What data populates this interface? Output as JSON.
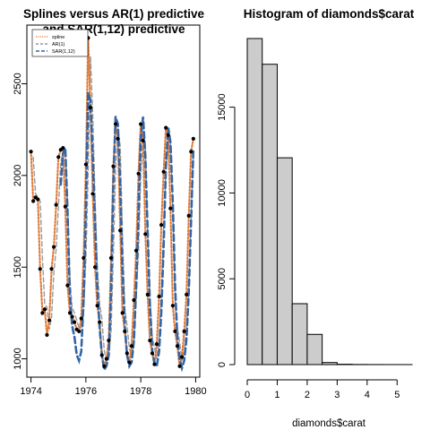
{
  "chart_data": [
    {
      "type": "line",
      "title": "Splines versus AR(1) predictive and SAR(1,12) predictive",
      "title_line1": "Splines versus AR(1) predictive",
      "title_line2": "and SAR(1,12) predictive",
      "xlabel": "",
      "ylabel": "",
      "xlim": [
        1973.85,
        1980.15
      ],
      "ylim": [
        900,
        2820
      ],
      "x_ticks": [
        1974,
        1976,
        1978,
        1980
      ],
      "x_tick_labels": [
        "1974",
        "1976",
        "1978",
        "1980"
      ],
      "y_ticks": [
        1000,
        1500,
        2000,
        2500
      ],
      "y_tick_labels": [
        "1000",
        "1500",
        "2000",
        "2500"
      ],
      "legend": {
        "position": "top-left",
        "entries": [
          "spline",
          "AR(1)",
          "SAR(1,12)"
        ]
      },
      "colors": {
        "points": "#000000",
        "spline": "#e07b39",
        "ar1": "#999999",
        "sar": "#3465a4"
      },
      "x": [
        1974.0,
        1974.083,
        1974.167,
        1974.25,
        1974.333,
        1974.417,
        1974.5,
        1974.583,
        1974.667,
        1974.75,
        1974.833,
        1974.917,
        1975.0,
        1975.083,
        1975.167,
        1975.25,
        1975.333,
        1975.417,
        1975.5,
        1975.583,
        1975.667,
        1975.75,
        1975.833,
        1975.917,
        1976.0,
        1976.083,
        1976.167,
        1976.25,
        1976.333,
        1976.417,
        1976.5,
        1976.583,
        1976.667,
        1976.75,
        1976.833,
        1976.917,
        1977.0,
        1977.083,
        1977.167,
        1977.25,
        1977.333,
        1977.417,
        1977.5,
        1977.583,
        1977.667,
        1977.75,
        1977.833,
        1977.917,
        1978.0,
        1978.083,
        1978.167,
        1978.25,
        1978.333,
        1978.417,
        1978.5,
        1978.583,
        1978.667,
        1978.75,
        1978.833,
        1978.917,
        1979.0,
        1979.083,
        1979.167,
        1979.25,
        1979.333,
        1979.417,
        1979.5,
        1979.583,
        1979.667,
        1979.75,
        1979.833,
        1979.917
      ],
      "series": [
        {
          "name": "spline",
          "style": "dotted",
          "values": [
            2130,
            1860,
            1880,
            1870,
            1490,
            1250,
            1270,
            1130,
            1210,
            1490,
            1610,
            1840,
            2100,
            2140,
            2150,
            1830,
            1400,
            1250,
            1230,
            1200,
            1160,
            1150,
            1220,
            1550,
            2060,
            2750,
            2370,
            1900,
            1500,
            1290,
            1200,
            1020,
            960,
            1000,
            1100,
            1550,
            2050,
            2280,
            2200,
            1700,
            1250,
            1150,
            1030,
            980,
            1070,
            1320,
            1590,
            2010,
            2280,
            2190,
            1680,
            1350,
            1100,
            1030,
            970,
            1080,
            1340,
            1730,
            2020,
            2260,
            2220,
            1820,
            1290,
            1150,
            1070,
            960,
            1010,
            1150,
            1350,
            1780,
            2130,
            2200
          ]
        },
        {
          "name": "AR(1)",
          "style": "dashed",
          "values": [
            null,
            2100,
            1900,
            1880,
            1860,
            1550,
            1300,
            1280,
            1160,
            1230,
            1470,
            1600,
            1830,
            2070,
            2130,
            2140,
            1850,
            1440,
            1280,
            1250,
            1210,
            1170,
            1170,
            1250,
            1540,
            2010,
            2650,
            2330,
            1880,
            1500,
            1300,
            1220,
            1050,
            980,
            1030,
            1150,
            1560,
            2030,
            2250,
            2160,
            1680,
            1280,
            1180,
            1060,
            1010,
            1090,
            1340,
            1580,
            2000,
            2240,
            2150,
            1670,
            1350,
            1120,
            1060,
            1000,
            1110,
            1370,
            1740,
            2020,
            2220,
            2170,
            1800,
            1300,
            1170,
            1090,
            990,
            1040,
            1180,
            1380,
            1790,
            2120
          ]
        },
        {
          "name": "SAR(1,12)",
          "style": "longdash",
          "values": [
            null,
            null,
            null,
            null,
            null,
            null,
            null,
            null,
            null,
            null,
            null,
            null,
            null,
            1950,
            2120,
            2150,
            1800,
            1350,
            1180,
            1120,
            1020,
            990,
            1040,
            1320,
            1830,
            2450,
            2410,
            2100,
            1750,
            1400,
            1170,
            1020,
            940,
            960,
            1020,
            1380,
            1950,
            2320,
            2280,
            1950,
            1500,
            1180,
            1020,
            960,
            980,
            1100,
            1390,
            1780,
            2200,
            2320,
            2100,
            1700,
            1300,
            1050,
            970,
            960,
            1040,
            1260,
            1620,
            2050,
            2260,
            2180,
            1850,
            1400,
            1110,
            1000,
            950,
            990,
            1110,
            1360,
            1750,
            2150
          ]
        }
      ]
    },
    {
      "type": "bar",
      "subtype": "histogram",
      "title": "Histogram of diamonds$carat",
      "xlabel": "diamonds$carat",
      "ylabel": "",
      "bin_edges": [
        0,
        0.5,
        1,
        1.5,
        2,
        2.5,
        3,
        3.5,
        4,
        4.5,
        5,
        5.5
      ],
      "values": [
        19000,
        17500,
        12050,
        3550,
        1760,
        120,
        20,
        8,
        4,
        2,
        1
      ],
      "xlim": [
        0,
        5.5
      ],
      "ylim": [
        0,
        19000
      ],
      "x_ticks": [
        0,
        1,
        2,
        3,
        4,
        5
      ],
      "x_tick_labels": [
        "0",
        "1",
        "2",
        "3",
        "4",
        "5"
      ],
      "y_ticks": [
        0,
        5000,
        10000,
        15000
      ],
      "y_tick_labels": [
        "0",
        "5000",
        "10000",
        "15000"
      ],
      "colors": {
        "bar_fill": "#cccccc",
        "bar_stroke": "#000000"
      }
    }
  ]
}
